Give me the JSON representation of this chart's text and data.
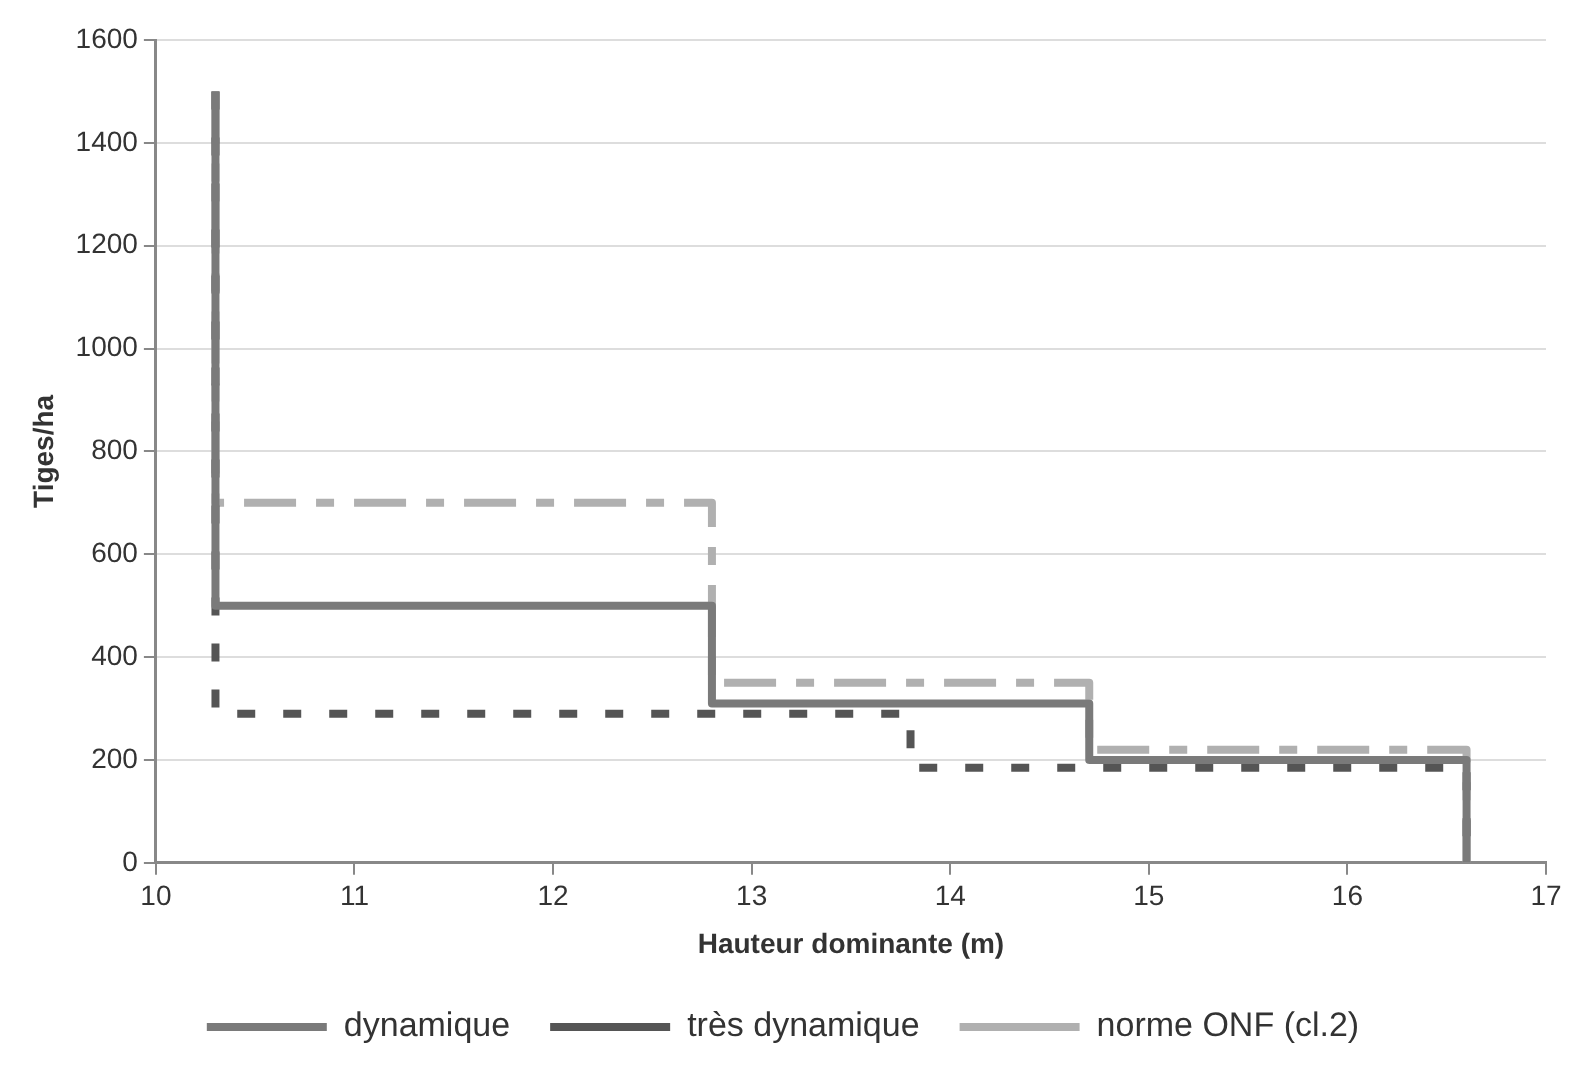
{
  "chart_data": {
    "type": "step",
    "xlabel": "Hauteur dominante (m)",
    "ylabel": "Tiges/ha",
    "xlim": [
      10,
      17
    ],
    "xticks": [
      10,
      11,
      12,
      13,
      14,
      15,
      16,
      17
    ],
    "ylim": [
      0,
      1600
    ],
    "yticks": [
      0,
      200,
      400,
      600,
      800,
      1000,
      1200,
      1400,
      1600
    ],
    "grid": "y",
    "legend": "bottom",
    "marker": "none",
    "series": [
      {
        "name": "dynamique",
        "color": "#7a7a7a",
        "line_style": "solid",
        "x": [
          10.3,
          10.3,
          12.8,
          14.7,
          16.6
        ],
        "values": [
          1500,
          500,
          310,
          200,
          0
        ]
      },
      {
        "name": "très dynamique",
        "color": "#555555",
        "line_style": "dotted",
        "x": [
          10.3,
          10.3,
          13.8,
          16.6
        ],
        "values": [
          1500,
          290,
          185,
          0
        ]
      },
      {
        "name": "norme ONF (cl.2)",
        "color": "#b0b0b0",
        "line_style": "dashed",
        "x": [
          10.3,
          10.3,
          12.8,
          14.7,
          16.6
        ],
        "values": [
          1500,
          700,
          350,
          220,
          0
        ]
      }
    ]
  }
}
